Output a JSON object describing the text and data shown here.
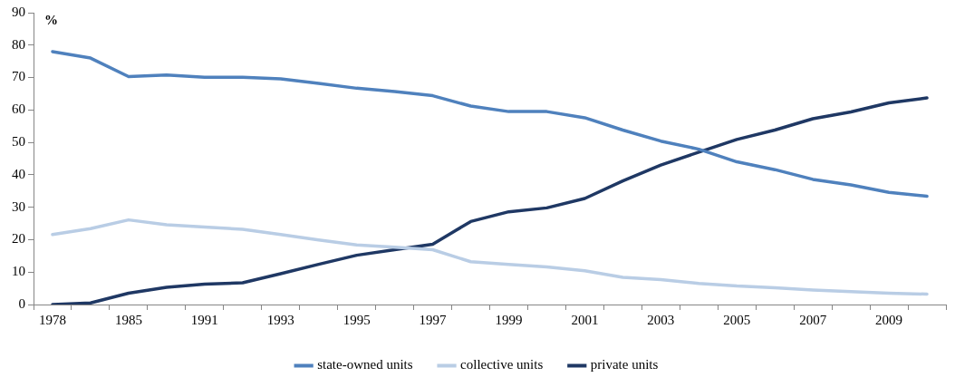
{
  "chart_data": {
    "type": "line",
    "ylabel": "%",
    "categories": [
      "1978",
      null,
      "1985",
      null,
      "1991",
      null,
      "1993",
      null,
      "1995",
      null,
      "1997",
      null,
      "1999",
      null,
      "2001",
      null,
      "2003",
      null,
      "2005",
      null,
      "2007",
      null,
      "2009",
      null
    ],
    "series": [
      {
        "name": "state-owned units",
        "color": "#4f81bd",
        "values": [
          78,
          76,
          70.3,
          70.8,
          70.1,
          70.1,
          69.6,
          68.2,
          66.7,
          65.7,
          64.4,
          61.2,
          59.5,
          59.5,
          57.6,
          53.8,
          50.4,
          47.9,
          44,
          41.6,
          38.6,
          36.9,
          34.6,
          33.4
        ]
      },
      {
        "name": "collective units",
        "color": "#b9cde5",
        "values": [
          21.6,
          23.4,
          26.1,
          24.6,
          23.9,
          23.2,
          21.6,
          19.9,
          18.4,
          17.7,
          16.9,
          13.2,
          12.4,
          11.6,
          10.4,
          8.4,
          7.7,
          6.5,
          5.7,
          5.2,
          4.5,
          4,
          3.5,
          3.2
        ]
      },
      {
        "name": "private units",
        "color": "#1f3864",
        "values": [
          0,
          0.5,
          3.5,
          5.3,
          6.3,
          6.7,
          9.5,
          12.4,
          15.2,
          16.9,
          18.6,
          25.6,
          28.6,
          29.8,
          32.7,
          38.1,
          43,
          47,
          50.9,
          53.8,
          57.3,
          59.4,
          62.2,
          63.7
        ]
      }
    ],
    "ylim": [
      0,
      90
    ],
    "yticks": [
      0,
      10,
      20,
      30,
      40,
      50,
      60,
      70,
      80,
      90
    ],
    "grid": false,
    "legend": "bottom",
    "marker": "none",
    "line_style": "solid"
  }
}
